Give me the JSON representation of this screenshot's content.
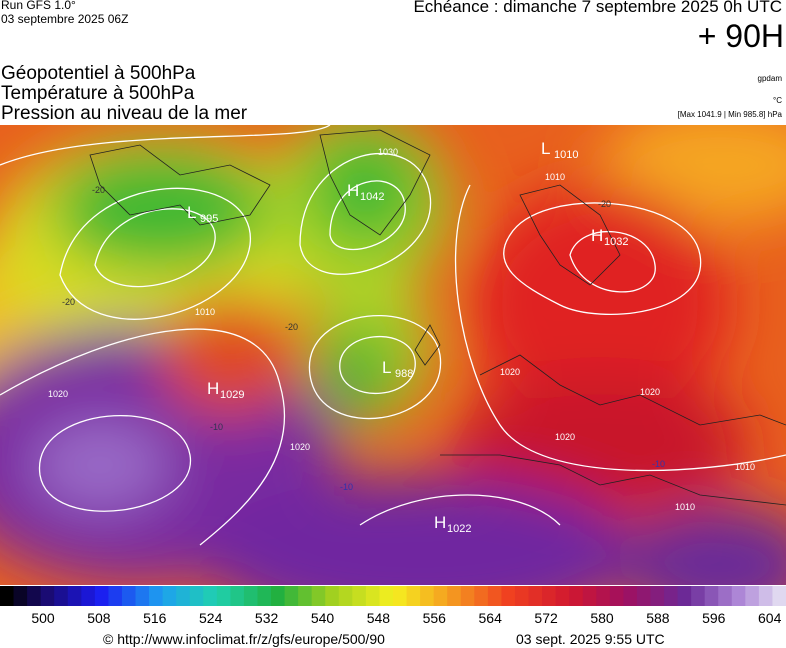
{
  "header": {
    "run": "Run GFS 1.0°",
    "run_date": "03 septembre 2025 06Z",
    "valid": "Echéance : dimanche 7 septembre 2025 0h UTC",
    "lead": "+ 90H",
    "fields": [
      "Géopotentiel à 500hPa",
      "Température à 500hPa",
      "Pression au niveau de la mer"
    ],
    "units": [
      "gpdam",
      "°C",
      "[Max 1041.9 | Min 985.8] hPa"
    ]
  },
  "map": {
    "centers": [
      {
        "letter": "L",
        "value": "995"
      },
      {
        "letter": "H",
        "value": "1042"
      },
      {
        "letter": "L",
        "value": "1010"
      },
      {
        "letter": "H",
        "value": "1032"
      },
      {
        "letter": "L",
        "value": "988"
      },
      {
        "letter": "H",
        "value": "1029"
      },
      {
        "letter": "H",
        "value": "1022"
      }
    ],
    "contour_labels": [
      "1020",
      "1010",
      "1030",
      "1020",
      "1010",
      "1020",
      "1020",
      "1020",
      "1010",
      "1010",
      "-20",
      "-20",
      "-20",
      "-10",
      "-10",
      "-10",
      "-20"
    ]
  },
  "scale": {
    "labels": [
      "500",
      "508",
      "516",
      "524",
      "532",
      "540",
      "548",
      "556",
      "564",
      "572",
      "580",
      "588",
      "596",
      "604"
    ]
  },
  "footer": {
    "source": "© http://www.infoclimat.fr/z/gfs/europe/500/90",
    "generated": "03 sept. 2025  9:55 UTC"
  }
}
